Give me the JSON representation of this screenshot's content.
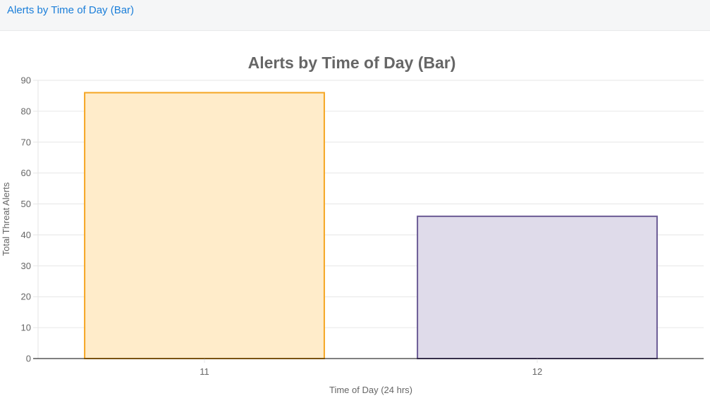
{
  "panel": {
    "title": "Alerts by Time of Day (Bar)"
  },
  "chart_data": {
    "type": "bar",
    "title": "Alerts by Time of Day (Bar)",
    "xlabel": "Time of Day (24 hrs)",
    "ylabel": "Total Threat Alerts",
    "categories": [
      "11",
      "12"
    ],
    "values": [
      86,
      46
    ],
    "ylim": [
      0,
      90
    ],
    "yticks": [
      0,
      10,
      20,
      30,
      40,
      50,
      60,
      70,
      80,
      90
    ],
    "grid": true,
    "legend": "none",
    "colors": {
      "fill": [
        "#ffecca",
        "#dfdbea"
      ],
      "stroke": [
        "#f5a623",
        "#6b5b95"
      ],
      "grid": "#e6e6e6",
      "axis": "#000000"
    }
  }
}
